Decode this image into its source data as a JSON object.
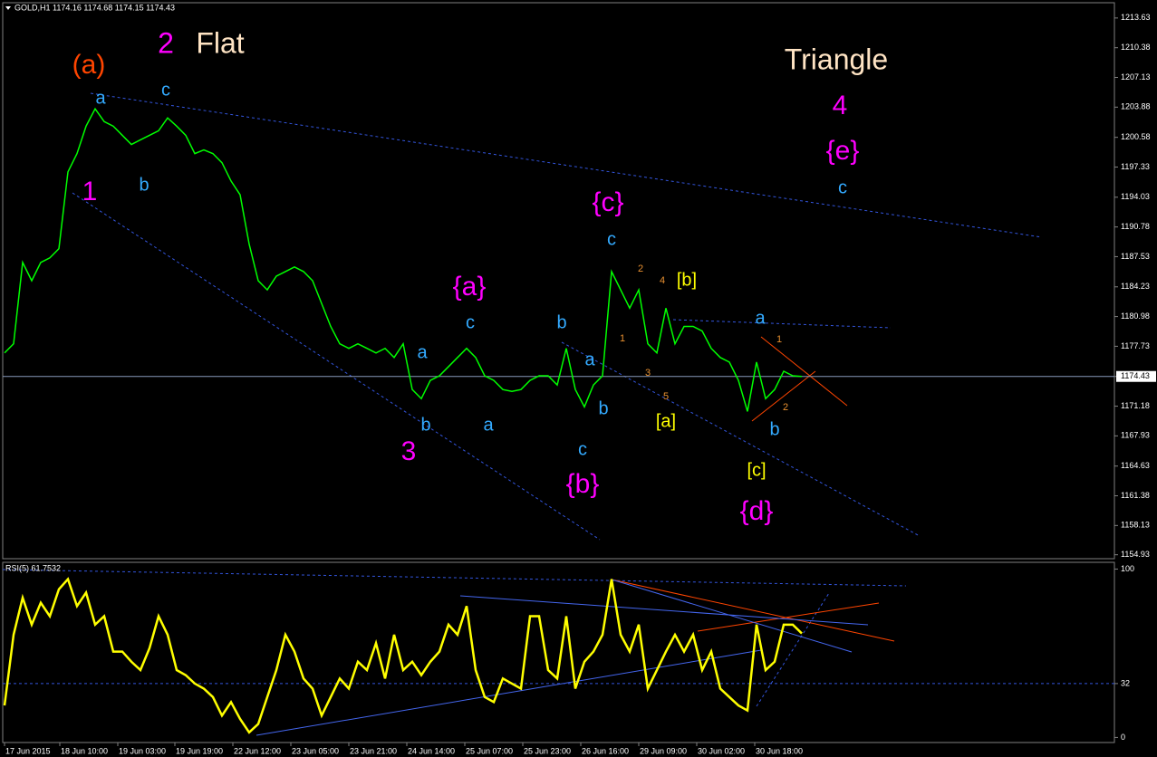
{
  "chart_data": [
    {
      "type": "line",
      "title": "GOLD,H1  1174.16 1174.68 1174.15 1174.43",
      "color": "#00ff00",
      "x": [
        0,
        1,
        2,
        3,
        4,
        5,
        6,
        7,
        8,
        9,
        10,
        11,
        12,
        13,
        14,
        15,
        16,
        17,
        18,
        19,
        20,
        21,
        22,
        23,
        24,
        25,
        26,
        27,
        28,
        29,
        30,
        31,
        32,
        33,
        34,
        35,
        36,
        37,
        38,
        39,
        40,
        41,
        42,
        43,
        44,
        45,
        46,
        47,
        48,
        49,
        50,
        51,
        52,
        53,
        54,
        55,
        56,
        57,
        58,
        59,
        60,
        61,
        62,
        63,
        64,
        65,
        66,
        67,
        68,
        69,
        70,
        71,
        72,
        73,
        74,
        75,
        76,
        77,
        78,
        79,
        80,
        81,
        82,
        83,
        84,
        85,
        86,
        87,
        88
      ],
      "values": [
        1177.0,
        1178.0,
        1186.9,
        1184.9,
        1186.9,
        1187.4,
        1188.4,
        1196.8,
        1198.8,
        1201.8,
        1203.7,
        1202.3,
        1201.8,
        1200.8,
        1199.8,
        1200.3,
        1200.8,
        1201.3,
        1202.7,
        1201.8,
        1200.8,
        1198.8,
        1199.2,
        1198.8,
        1197.8,
        1195.8,
        1194.3,
        1188.9,
        1184.9,
        1183.9,
        1185.4,
        1185.9,
        1186.4,
        1185.9,
        1184.9,
        1182.4,
        1179.9,
        1178.0,
        1177.5,
        1178.0,
        1177.5,
        1177.0,
        1177.5,
        1176.5,
        1178.0,
        1173.0,
        1172.0,
        1174.0,
        1174.5,
        1175.5,
        1176.5,
        1177.5,
        1176.5,
        1174.5,
        1174.0,
        1173.0,
        1172.8,
        1173.0,
        1174.0,
        1174.5,
        1174.5,
        1173.5,
        1177.5,
        1173.0,
        1171.1,
        1173.5,
        1174.5,
        1185.9,
        1183.9,
        1181.9,
        1183.9,
        1178.0,
        1177.0,
        1181.9,
        1178.0,
        1179.9,
        1179.9,
        1179.4,
        1177.5,
        1176.5,
        1176.0,
        1174.0,
        1170.6,
        1176.0,
        1172.0,
        1173.0,
        1175.0,
        1174.5,
        1174.43
      ],
      "xlim": [
        -0.2,
        122.5
      ],
      "ylim": [
        1154.5,
        1215.3
      ],
      "yticks": [
        1213.63,
        1210.38,
        1207.13,
        1203.88,
        1200.58,
        1197.33,
        1194.03,
        1190.78,
        1187.53,
        1184.23,
        1180.98,
        1177.73,
        1174.43,
        1171.18,
        1167.93,
        1164.63,
        1161.38,
        1158.13,
        1154.93
      ],
      "annotations": [
        {
          "text": "(a)",
          "color": "#ff4500"
        },
        {
          "text": "2",
          "color": "#ff00ff"
        },
        {
          "text": "Flat",
          "color": "#ffe4c4"
        },
        {
          "text": "Triangle",
          "color": "#ffe4c4"
        },
        {
          "text": "4",
          "color": "#ff00ff"
        },
        {
          "text": "{e}",
          "color": "#ff00ff"
        },
        {
          "text": "c",
          "color": "#33aaff"
        },
        {
          "text": "a",
          "color": "#33aaff"
        },
        {
          "text": "c",
          "color": "#33aaff"
        },
        {
          "text": "1",
          "color": "#ff00ff"
        },
        {
          "text": "b",
          "color": "#33aaff"
        },
        {
          "text": "{c}",
          "color": "#ff00ff"
        },
        {
          "text": "c",
          "color": "#33aaff"
        },
        {
          "text": "2",
          "color": "#e89030"
        },
        {
          "text": "4",
          "color": "#e89030"
        },
        {
          "text": "[b]",
          "color": "#ffff00"
        },
        {
          "text": "{a}",
          "color": "#ff00ff"
        },
        {
          "text": "c",
          "color": "#33aaff"
        },
        {
          "text": "b",
          "color": "#33aaff"
        },
        {
          "text": "a",
          "color": "#33aaff"
        },
        {
          "text": "1",
          "color": "#e89030"
        },
        {
          "text": "1",
          "color": "#e89030"
        },
        {
          "text": "a",
          "color": "#33aaff"
        },
        {
          "text": "a",
          "color": "#33aaff"
        },
        {
          "text": "3",
          "color": "#e89030"
        },
        {
          "text": "5",
          "color": "#e89030"
        },
        {
          "text": "2",
          "color": "#e89030"
        },
        {
          "text": "b",
          "color": "#33aaff"
        },
        {
          "text": "b",
          "color": "#33aaff"
        },
        {
          "text": "a",
          "color": "#33aaff"
        },
        {
          "text": "[a]",
          "color": "#ffff00"
        },
        {
          "text": "b",
          "color": "#33aaff"
        },
        {
          "text": "3",
          "color": "#ff00ff"
        },
        {
          "text": "c",
          "color": "#33aaff"
        },
        {
          "text": "[c]",
          "color": "#ffff00"
        },
        {
          "text": "{b}",
          "color": "#ff00ff"
        },
        {
          "text": "{d}",
          "color": "#ff00ff"
        }
      ]
    },
    {
      "type": "line",
      "title": "RSI(5) 61.7532",
      "color": "#ffff00",
      "x": [
        0,
        1,
        2,
        3,
        4,
        5,
        6,
        7,
        8,
        9,
        10,
        11,
        12,
        13,
        14,
        15,
        16,
        17,
        18,
        19,
        20,
        21,
        22,
        23,
        24,
        25,
        26,
        27,
        28,
        29,
        30,
        31,
        32,
        33,
        34,
        35,
        36,
        37,
        38,
        39,
        40,
        41,
        42,
        43,
        44,
        45,
        46,
        47,
        48,
        49,
        50,
        51,
        52,
        53,
        54,
        55,
        56,
        57,
        58,
        59,
        60,
        61,
        62,
        63,
        64,
        65,
        66,
        67,
        68,
        69,
        70,
        71,
        72,
        73,
        74,
        75,
        76,
        77,
        78,
        79,
        80,
        81,
        82,
        83,
        84,
        85,
        86,
        87,
        88
      ],
      "values": [
        19,
        61,
        83,
        67,
        80,
        72,
        88,
        94,
        78,
        86,
        67,
        72,
        51,
        51,
        45,
        40,
        53,
        72,
        61,
        40,
        37,
        32,
        29,
        24,
        13,
        21,
        11,
        3,
        8,
        24,
        40,
        61,
        51,
        35,
        29,
        13,
        24,
        35,
        29,
        45,
        40,
        56,
        35,
        61,
        40,
        45,
        37,
        45,
        51,
        67,
        61,
        78,
        40,
        24,
        21,
        35,
        32,
        29,
        72,
        72,
        40,
        35,
        72,
        29,
        45,
        51,
        61,
        94,
        61,
        51,
        67,
        29,
        40,
        51,
        61,
        51,
        61,
        40,
        51,
        29,
        24,
        19,
        16,
        67,
        40,
        45,
        67,
        67,
        61.7532
      ],
      "xlim": [
        -0.2,
        122.5
      ],
      "ylim": [
        -3,
        104
      ],
      "yticks": [
        0,
        32,
        100
      ],
      "levels": [
        32
      ],
      "xticks": [
        {
          "value": 0,
          "label": "17 Jun 2015"
        },
        {
          "value": 6.1,
          "label": "18 Jun 10:00"
        },
        {
          "value": 12.5,
          "label": "19 Jun 03:00"
        },
        {
          "value": 18.8,
          "label": "19 Jun 19:00"
        },
        {
          "value": 25.2,
          "label": "22 Jun 12:00"
        },
        {
          "value": 31.6,
          "label": "23 Jun 05:00"
        },
        {
          "value": 38,
          "label": "23 Jun 21:00"
        },
        {
          "value": 44.4,
          "label": "24 Jun 14:00"
        },
        {
          "value": 50.8,
          "label": "25 Jun 07:00"
        },
        {
          "value": 57.2,
          "label": "25 Jun 23:00"
        },
        {
          "value": 63.6,
          "label": "26 Jun 16:00"
        },
        {
          "value": 70,
          "label": "29 Jun 09:00"
        },
        {
          "value": 76.4,
          "label": "30 Jun 02:00"
        },
        {
          "value": 82.8,
          "label": "30 Jun 18:00"
        }
      ]
    }
  ]
}
